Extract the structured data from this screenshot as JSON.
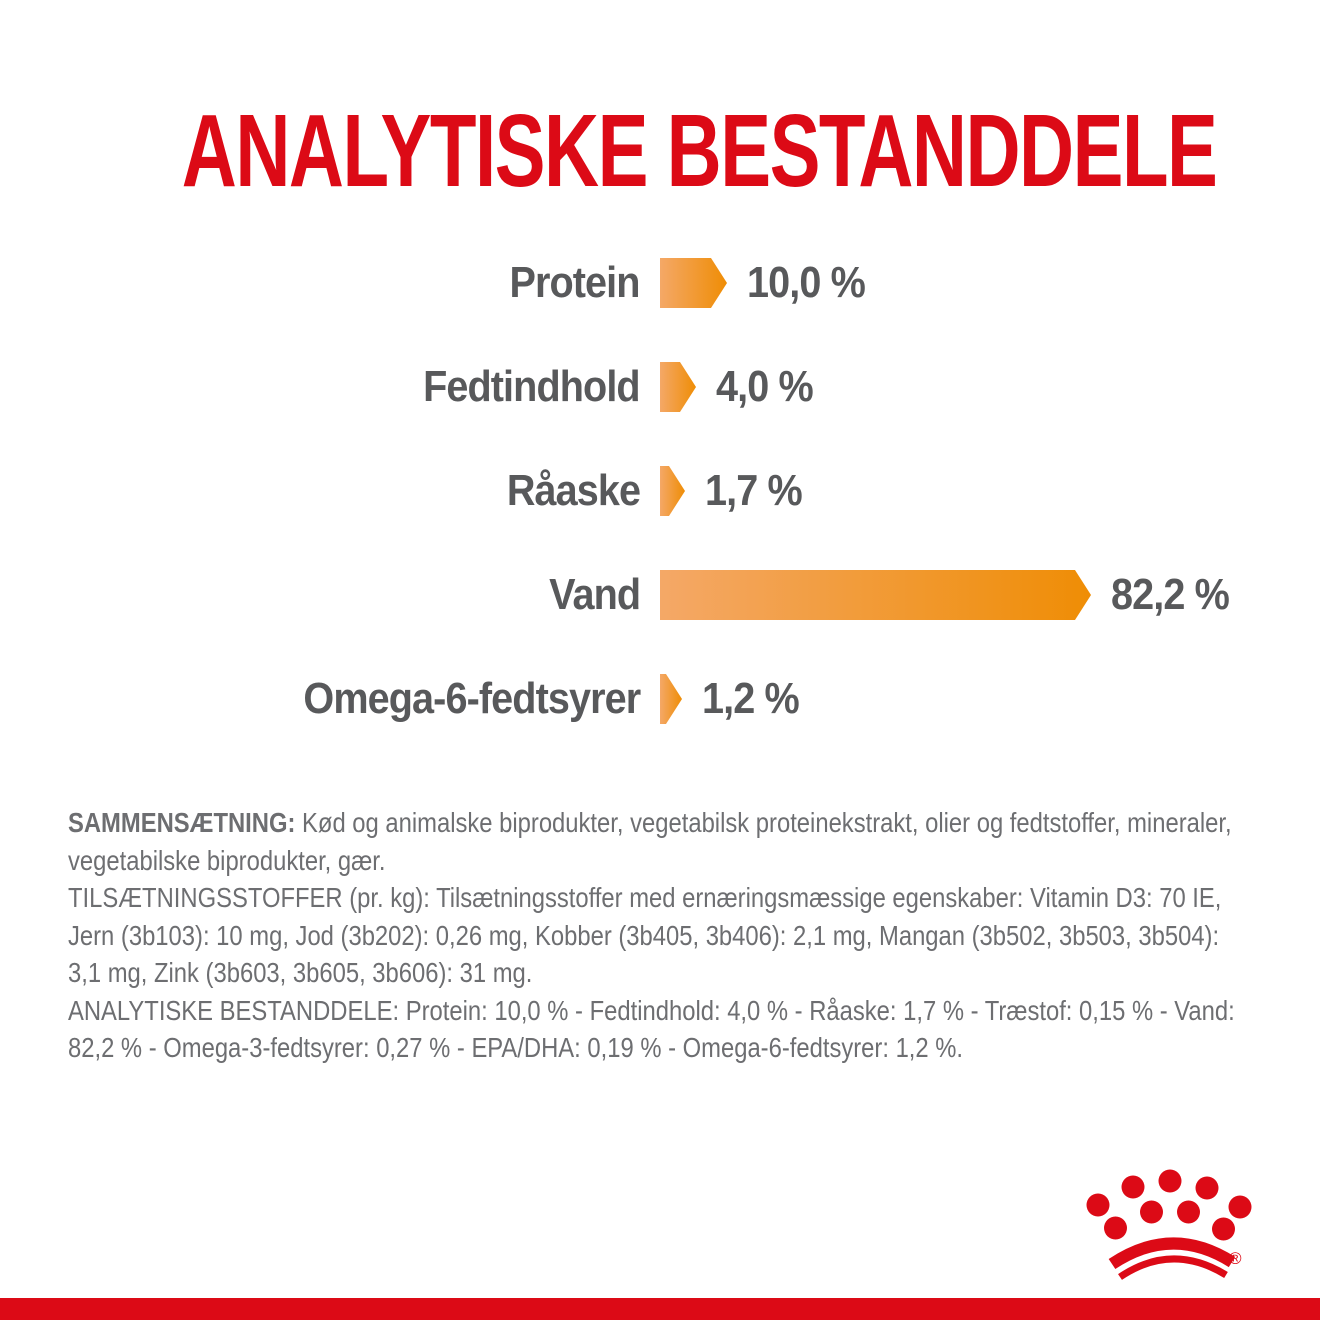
{
  "title": "ANALYTISKE BESTANDDELE",
  "chart_data": {
    "type": "bar",
    "orientation": "horizontal",
    "bar_style": "right-pointing-arrow",
    "categories": [
      "Protein",
      "Fedtindhold",
      "Råaske",
      "Vand",
      "Omega-6-fedtsyrer"
    ],
    "values": [
      10.0,
      4.0,
      1.7,
      82.2,
      1.2
    ],
    "value_labels": [
      "10,0 %",
      "4,0 %",
      "1,7 %",
      "82,2 %",
      "1,2 %"
    ],
    "xlim": [
      0,
      100
    ],
    "grid": false,
    "legend": "none"
  },
  "info_text": {
    "composition_label": "SAMMENSÆTNING:",
    "composition": "Kød og animalske biprodukter, vegetabilsk proteinekstrakt, olier og fedtstoffer, mineraler, vegetabilske biprodukter, gær.",
    "additives": "TILSÆTNINGSSTOFFER (pr. kg): Tilsætningsstoffer med ernæringsmæssige egenskaber: Vitamin D3: 70 IE, Jern (3b103): 10 mg, Jod (3b202): 0,26 mg, Kobber (3b405, 3b406): 2,1 mg, Mangan (3b502, 3b503, 3b504): 3,1 mg, Zink (3b603, 3b605, 3b606): 31 mg.",
    "analytical": "ANALYTISKE BESTANDDELE: Protein: 10,0 % - Fedtindhold: 4,0 % - Råaske: 1,7 % - Træstof: 0,15 % - Vand: 82,2 % - Omega-3-fedtsyrer: 0,27 % - EPA/DHA: 0,19 % - Omega-6-fedtsyrer: 1,2 %."
  },
  "brand": {
    "logo": "royal-canin-crown",
    "registered_mark": "®"
  },
  "colors": {
    "brand_red": "#DC0A16",
    "bar_gradient_start": "#F4A867",
    "bar_gradient_end": "#EF8D05",
    "label_gray": "#58595B",
    "body_text_gray": "#6D6E71"
  }
}
